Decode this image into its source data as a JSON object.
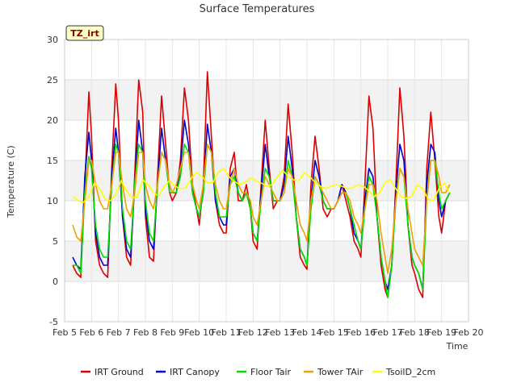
{
  "chart_data": {
    "type": "line",
    "title": "Surface Temperatures",
    "xlabel": "Time",
    "ylabel": "Temperature (C)",
    "site_tag": "TZ_irt",
    "x_ticks": [
      "Feb 5",
      "Feb 6",
      "Feb 7",
      "Feb 8",
      "Feb 9",
      "Feb 10",
      "Feb 11",
      "Feb 12",
      "Feb 13",
      "Feb 14",
      "Feb 15",
      "Feb 16",
      "Feb 17",
      "Feb 18",
      "Feb 19",
      "Feb 20"
    ],
    "y_ticks": [
      -5,
      0,
      5,
      10,
      15,
      20,
      25,
      30
    ],
    "xlim": [
      5,
      20
    ],
    "ylim": [
      -5,
      30
    ],
    "grid": true,
    "legend_position": "bottom",
    "colors": {
      "IRT Ground": "#dd0000",
      "IRT Canopy": "#0000cc",
      "Floor Tair": "#00dd00",
      "Tower TAir": "#f0a000",
      "TsoilD_2cm": "#ffff00"
    },
    "series": [
      {
        "name": "IRT Ground",
        "x": [
          5.3,
          5.45,
          5.6,
          5.75,
          5.9,
          6.0,
          6.15,
          6.3,
          6.45,
          6.6,
          6.75,
          6.9,
          7.0,
          7.15,
          7.3,
          7.45,
          7.6,
          7.75,
          7.9,
          8.0,
          8.15,
          8.3,
          8.45,
          8.6,
          8.75,
          8.9,
          9.0,
          9.15,
          9.3,
          9.45,
          9.6,
          9.75,
          9.9,
          10.0,
          10.15,
          10.3,
          10.45,
          10.6,
          10.75,
          10.9,
          11.0,
          11.15,
          11.3,
          11.45,
          11.6,
          11.75,
          11.9,
          12.0,
          12.15,
          12.3,
          12.45,
          12.6,
          12.75,
          12.9,
          13.0,
          13.15,
          13.3,
          13.45,
          13.6,
          13.75,
          13.9,
          14.0,
          14.15,
          14.3,
          14.45,
          14.6,
          14.75,
          14.9,
          15.0,
          15.15,
          15.3,
          15.45,
          15.6,
          15.75,
          15.9,
          16.0,
          16.15,
          16.3,
          16.45,
          16.6,
          16.75,
          16.9,
          17.0,
          17.15,
          17.3,
          17.45,
          17.6,
          17.75,
          17.9,
          18.0,
          18.15,
          18.3,
          18.45,
          18.6,
          18.75,
          18.9,
          19.0,
          19.15,
          19.3
        ],
        "y": [
          2,
          1,
          0.5,
          12,
          23.5,
          18,
          5,
          2,
          1,
          0.5,
          14,
          24.5,
          20,
          8,
          3,
          2,
          13,
          25,
          21,
          8,
          3,
          2.5,
          13,
          23,
          17,
          11,
          10,
          11,
          15,
          24,
          20,
          12,
          9,
          7,
          12,
          26,
          18,
          10,
          7,
          6,
          6,
          14,
          16,
          10,
          10,
          12,
          9,
          5,
          4,
          12,
          20,
          14,
          9,
          10,
          10,
          13,
          22,
          16,
          8,
          3,
          2,
          1.5,
          12,
          18,
          14,
          9,
          8,
          9,
          9,
          10,
          12,
          10,
          8,
          5,
          4,
          3,
          12,
          23,
          19,
          8,
          2,
          -1,
          -2,
          2,
          12,
          24,
          18,
          7,
          2,
          1,
          -1,
          -2,
          14,
          21,
          15,
          8,
          6,
          10,
          11
        ]
      },
      {
        "name": "IRT Canopy",
        "x": [
          5.3,
          5.45,
          5.6,
          5.75,
          5.9,
          6.0,
          6.15,
          6.3,
          6.45,
          6.6,
          6.75,
          6.9,
          7.0,
          7.15,
          7.3,
          7.45,
          7.6,
          7.75,
          7.9,
          8.0,
          8.15,
          8.3,
          8.45,
          8.6,
          8.75,
          8.9,
          9.0,
          9.15,
          9.3,
          9.45,
          9.6,
          9.75,
          9.9,
          10.0,
          10.15,
          10.3,
          10.45,
          10.6,
          10.75,
          10.9,
          11.0,
          11.15,
          11.3,
          11.45,
          11.6,
          11.75,
          11.9,
          12.0,
          12.15,
          12.3,
          12.45,
          12.6,
          12.75,
          12.9,
          13.0,
          13.15,
          13.3,
          13.45,
          13.6,
          13.75,
          13.9,
          14.0,
          14.15,
          14.3,
          14.45,
          14.6,
          14.75,
          14.9,
          15.0,
          15.15,
          15.3,
          15.45,
          15.6,
          15.75,
          15.9,
          16.0,
          16.15,
          16.3,
          16.45,
          16.6,
          16.75,
          16.9,
          17.0,
          17.15,
          17.3,
          17.45,
          17.6,
          17.75,
          17.9,
          18.0,
          18.15,
          18.3,
          18.45,
          18.6,
          18.75,
          18.9,
          19.0,
          19.15,
          19.3
        ],
        "y": [
          3,
          2,
          1.5,
          13,
          18.5,
          15,
          6,
          3,
          2,
          2,
          13,
          19,
          16,
          8,
          4,
          3,
          12,
          20,
          16,
          9,
          5,
          4,
          12,
          19,
          15,
          11,
          11,
          11,
          14,
          20,
          17,
          11,
          9,
          8,
          11,
          19.5,
          16,
          10,
          8,
          7,
          7,
          13,
          14,
          11,
          10,
          11,
          9,
          6,
          5,
          11,
          17,
          13,
          10,
          10,
          10,
          12,
          18,
          14,
          8,
          4,
          3,
          2,
          10,
          15,
          13,
          10,
          9,
          9,
          9,
          10,
          12,
          11,
          9,
          6,
          5,
          4,
          10,
          14,
          13,
          8,
          3,
          0,
          -1,
          2,
          11,
          17,
          15,
          7,
          3,
          2,
          1,
          -1,
          12,
          17,
          16,
          10,
          8,
          10,
          11
        ]
      },
      {
        "name": "Floor Tair",
        "x": [
          5.3,
          5.45,
          5.6,
          5.75,
          5.9,
          6.0,
          6.15,
          6.3,
          6.45,
          6.6,
          6.75,
          6.9,
          7.0,
          7.15,
          7.3,
          7.45,
          7.6,
          7.75,
          7.9,
          8.0,
          8.15,
          8.3,
          8.45,
          8.6,
          8.75,
          8.9,
          9.0,
          9.15,
          9.3,
          9.45,
          9.6,
          9.75,
          9.9,
          10.0,
          10.15,
          10.3,
          10.45,
          10.6,
          10.75,
          10.9,
          11.0,
          11.15,
          11.3,
          11.45,
          11.6,
          11.75,
          11.9,
          12.0,
          12.15,
          12.3,
          12.45,
          12.6,
          12.75,
          12.9,
          13.0,
          13.15,
          13.3,
          13.45,
          13.6,
          13.75,
          13.9,
          14.0,
          14.15,
          14.3,
          14.45,
          14.6,
          14.75,
          14.9,
          15.0,
          15.15,
          15.3,
          15.45,
          15.6,
          15.75,
          15.9,
          16.0,
          16.15,
          16.3,
          16.45,
          16.6,
          16.75,
          16.9,
          17.0,
          17.15,
          17.3,
          17.45,
          17.6,
          17.75,
          17.9,
          18.0,
          18.15,
          18.3,
          18.45,
          18.6,
          18.75,
          18.9,
          19.0,
          19.15,
          19.3
        ],
        "y": [
          2,
          2,
          1,
          11,
          15.5,
          14,
          7,
          4,
          3,
          3,
          12,
          17,
          16,
          9,
          5,
          4,
          12,
          17,
          16,
          10,
          6,
          5,
          12,
          16,
          15,
          11,
          11,
          11,
          13,
          17,
          16,
          11,
          9,
          8,
          11,
          17,
          16,
          11,
          8,
          8,
          8,
          12,
          13,
          11,
          10,
          11,
          9,
          6,
          5,
          10,
          14,
          13,
          10,
          10,
          10,
          11,
          15,
          13,
          8,
          4,
          3,
          2,
          9,
          13,
          12,
          10,
          9,
          9,
          9,
          10,
          11,
          11,
          9,
          7,
          5,
          4,
          9,
          13,
          12,
          8,
          3,
          0,
          -2,
          2,
          10,
          14,
          13,
          7,
          3,
          2,
          1,
          -1,
          10,
          15,
          15,
          11,
          9,
          10,
          11
        ]
      },
      {
        "name": "Tower TAir",
        "x": [
          5.3,
          5.45,
          5.6,
          5.75,
          5.9,
          6.0,
          6.15,
          6.3,
          6.45,
          6.6,
          6.75,
          6.9,
          7.0,
          7.15,
          7.3,
          7.45,
          7.6,
          7.75,
          7.9,
          8.0,
          8.15,
          8.3,
          8.45,
          8.6,
          8.75,
          8.9,
          9.0,
          9.15,
          9.3,
          9.45,
          9.6,
          9.75,
          9.9,
          10.0,
          10.15,
          10.3,
          10.45,
          10.6,
          10.75,
          10.9,
          11.0,
          11.15,
          11.3,
          11.45,
          11.6,
          11.75,
          11.9,
          12.0,
          12.15,
          12.3,
          12.45,
          12.6,
          12.75,
          12.9,
          13.0,
          13.15,
          13.3,
          13.45,
          13.6,
          13.75,
          13.9,
          14.0,
          14.15,
          14.3,
          14.45,
          14.6,
          14.75,
          14.9,
          15.0,
          15.15,
          15.3,
          15.45,
          15.6,
          15.75,
          15.9,
          16.0,
          16.15,
          16.3,
          16.45,
          16.6,
          16.75,
          16.9,
          17.0,
          17.15,
          17.3,
          17.45,
          17.6,
          17.75,
          17.9,
          18.0,
          18.15,
          18.3,
          18.45,
          18.6,
          18.75,
          18.9,
          19.0,
          19.15,
          19.3
        ],
        "y": [
          7,
          5.5,
          5,
          10,
          15,
          15,
          12,
          10,
          9,
          9,
          12,
          16,
          16,
          12,
          9,
          8,
          11,
          16,
          16,
          12,
          10,
          9,
          12,
          16,
          15,
          12,
          11,
          12,
          14,
          16,
          16,
          12,
          10,
          9,
          12,
          17,
          16,
          12,
          10,
          9,
          9,
          12,
          14,
          12,
          11,
          11,
          10,
          8,
          7,
          10,
          13,
          12,
          11,
          10,
          10,
          11,
          14,
          13,
          10,
          7,
          6,
          5,
          10,
          13,
          12,
          11,
          10,
          9,
          9,
          10,
          11,
          11,
          10,
          8,
          7,
          6,
          9,
          12,
          12,
          10,
          6,
          3,
          1,
          4,
          10,
          14,
          13,
          9,
          6,
          4,
          3,
          2,
          10,
          15,
          15,
          13,
          11,
          11,
          12
        ]
      },
      {
        "name": "TsoilD_2cm",
        "x": [
          5.3,
          5.5,
          5.7,
          5.9,
          6.1,
          6.3,
          6.5,
          6.7,
          6.9,
          7.1,
          7.3,
          7.5,
          7.7,
          7.9,
          8.1,
          8.3,
          8.5,
          8.7,
          8.9,
          9.1,
          9.3,
          9.5,
          9.7,
          9.9,
          10.1,
          10.3,
          10.5,
          10.7,
          10.9,
          11.1,
          11.3,
          11.5,
          11.7,
          11.9,
          12.1,
          12.3,
          12.5,
          12.7,
          12.9,
          13.1,
          13.3,
          13.5,
          13.7,
          13.9,
          14.1,
          14.3,
          14.5,
          14.7,
          14.9,
          15.1,
          15.3,
          15.5,
          15.7,
          15.9,
          16.1,
          16.3,
          16.5,
          16.7,
          16.9,
          17.1,
          17.3,
          17.5,
          17.7,
          17.9,
          18.1,
          18.3,
          18.5,
          18.7,
          18.9,
          19.1,
          19.3
        ],
        "y": [
          10.5,
          10,
          9.8,
          10.5,
          12.2,
          11.5,
          10.2,
          10,
          10.8,
          12.5,
          11.2,
          10.4,
          10.5,
          12.6,
          12,
          11,
          10.6,
          11.8,
          12.5,
          11.8,
          11.5,
          11.6,
          12.8,
          13.5,
          13,
          12.3,
          12.2,
          13.5,
          14,
          13,
          12.4,
          12,
          12.3,
          12.8,
          12.5,
          12.2,
          11.8,
          12,
          13,
          13.8,
          13,
          12.6,
          12.5,
          13.5,
          13,
          12.3,
          11.8,
          11.5,
          11.8,
          12,
          11.8,
          11.5,
          11.6,
          12,
          11.8,
          11.2,
          10.5,
          11,
          12.3,
          12.6,
          11.5,
          10.5,
          10.3,
          10.6,
          12,
          11.5,
          10.2,
          10,
          11.5,
          12.2,
          11
        ]
      }
    ]
  }
}
